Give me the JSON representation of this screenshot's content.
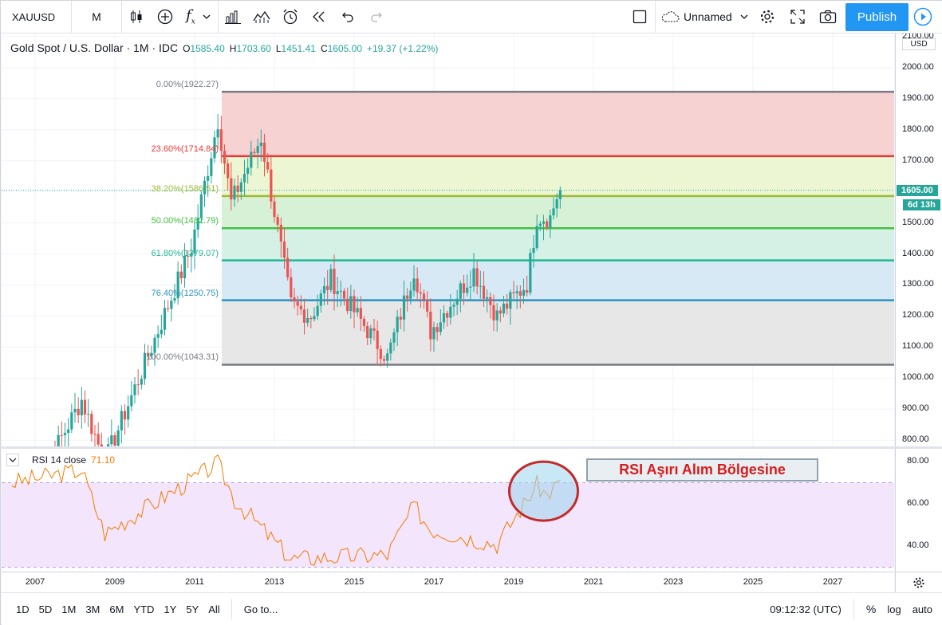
{
  "toolbar": {
    "symbol": "XAUUSD",
    "interval": "M",
    "layout_name": "Unnamed",
    "publish_label": "Publish"
  },
  "legend": {
    "title": "Gold Spot / U.S. Dollar · 1M · IDC",
    "o_key": "O",
    "o": "1585.40",
    "h_key": "H",
    "h": "1703.60",
    "l_key": "L",
    "l": "1451.41",
    "c_key": "C",
    "c": "1605.00",
    "change": "+19.37 (+1.22%)"
  },
  "price_axis": {
    "currency": "USD",
    "ticks": [
      "2100.00",
      "2000.00",
      "1900.00",
      "1800.00",
      "1700.00",
      "1600.00",
      "1500.00",
      "1400.00",
      "1300.00",
      "1200.00",
      "1100.00",
      "1000.00",
      "900.00",
      "800.00"
    ],
    "last_price": "1605.00",
    "countdown": "6d 13h"
  },
  "fib_levels": [
    {
      "label": "0.00%(1922.27)",
      "color": "#787b86",
      "fill": "#f7d0d0"
    },
    {
      "label": "23.60%(1714.84)",
      "color": "#e53935",
      "fill": "#ecf5d0"
    },
    {
      "label": "38.20%(1586.51)",
      "color": "#9cba34",
      "fill": "#d5f0d5"
    },
    {
      "label": "50.00%(1482.79)",
      "color": "#43c043",
      "fill": "#d3f0e4"
    },
    {
      "label": "61.80%(1379.07)",
      "color": "#22b895",
      "fill": "#d4e8f3"
    },
    {
      "label": "76.40%(1250.75)",
      "color": "#2b93c2",
      "fill": "#e6e6e6"
    },
    {
      "label": "100.00%(1043.31)",
      "color": "#787b86",
      "fill": ""
    }
  ],
  "rsi": {
    "label": "RSI 14 close",
    "value": "71.10",
    "ticks": [
      "80.00",
      "60.00",
      "40.00"
    ]
  },
  "annotation": "RSI Aşırı Alım Bölgesine",
  "time_axis": [
    "2007",
    "2009",
    "2011",
    "2013",
    "2015",
    "2017",
    "2019",
    "2021",
    "2023",
    "2025",
    "2027"
  ],
  "bottom_bar": {
    "ranges": [
      "1D",
      "5D",
      "1M",
      "3M",
      "6M",
      "YTD",
      "1Y",
      "5Y",
      "All"
    ],
    "goto": "Go to...",
    "clock": "09:12:32 (UTC)",
    "percent": "%",
    "log": "log",
    "auto": "auto"
  },
  "chart_data": {
    "type": "candlestick",
    "symbol": "XAUUSD",
    "interval": "1M",
    "price_range": [
      780,
      2110
    ],
    "monthly_close_anchors": [
      {
        "date": "2007-01",
        "close": 650
      },
      {
        "date": "2008-03",
        "close": 930
      },
      {
        "date": "2008-10",
        "close": 730
      },
      {
        "date": "2009-12",
        "close": 1100
      },
      {
        "date": "2010-12",
        "close": 1420
      },
      {
        "date": "2011-08",
        "close": 1830
      },
      {
        "date": "2011-12",
        "close": 1565
      },
      {
        "date": "2012-09",
        "close": 1775
      },
      {
        "date": "2013-06",
        "close": 1235
      },
      {
        "date": "2013-12",
        "close": 1200
      },
      {
        "date": "2014-06",
        "close": 1320
      },
      {
        "date": "2015-11",
        "close": 1065
      },
      {
        "date": "2016-07",
        "close": 1350
      },
      {
        "date": "2016-12",
        "close": 1150
      },
      {
        "date": "2018-01",
        "close": 1345
      },
      {
        "date": "2018-08",
        "close": 1200
      },
      {
        "date": "2019-05",
        "close": 1305
      },
      {
        "date": "2019-08",
        "close": 1520
      },
      {
        "date": "2019-12",
        "close": 1517
      },
      {
        "date": "2020-02",
        "close": 1585
      },
      {
        "date": "2020-03",
        "close": 1605
      }
    ],
    "rsi_range": [
      28,
      86
    ],
    "rsi_anchors": [
      {
        "date": "2006-06",
        "rsi": 70
      },
      {
        "date": "2008-03",
        "rsi": 76
      },
      {
        "date": "2008-10",
        "rsi": 46
      },
      {
        "date": "2011-08",
        "rsi": 79
      },
      {
        "date": "2012-01",
        "rsi": 62
      },
      {
        "date": "2013-06",
        "rsi": 34
      },
      {
        "date": "2015-11",
        "rsi": 36
      },
      {
        "date": "2016-07",
        "rsi": 59
      },
      {
        "date": "2016-12",
        "rsi": 48
      },
      {
        "date": "2018-08",
        "rsi": 41
      },
      {
        "date": "2019-08",
        "rsi": 69
      },
      {
        "date": "2019-11",
        "rsi": 64
      },
      {
        "date": "2020-03",
        "rsi": 71.1
      }
    ],
    "rsi_bands": [
      30,
      70
    ]
  }
}
